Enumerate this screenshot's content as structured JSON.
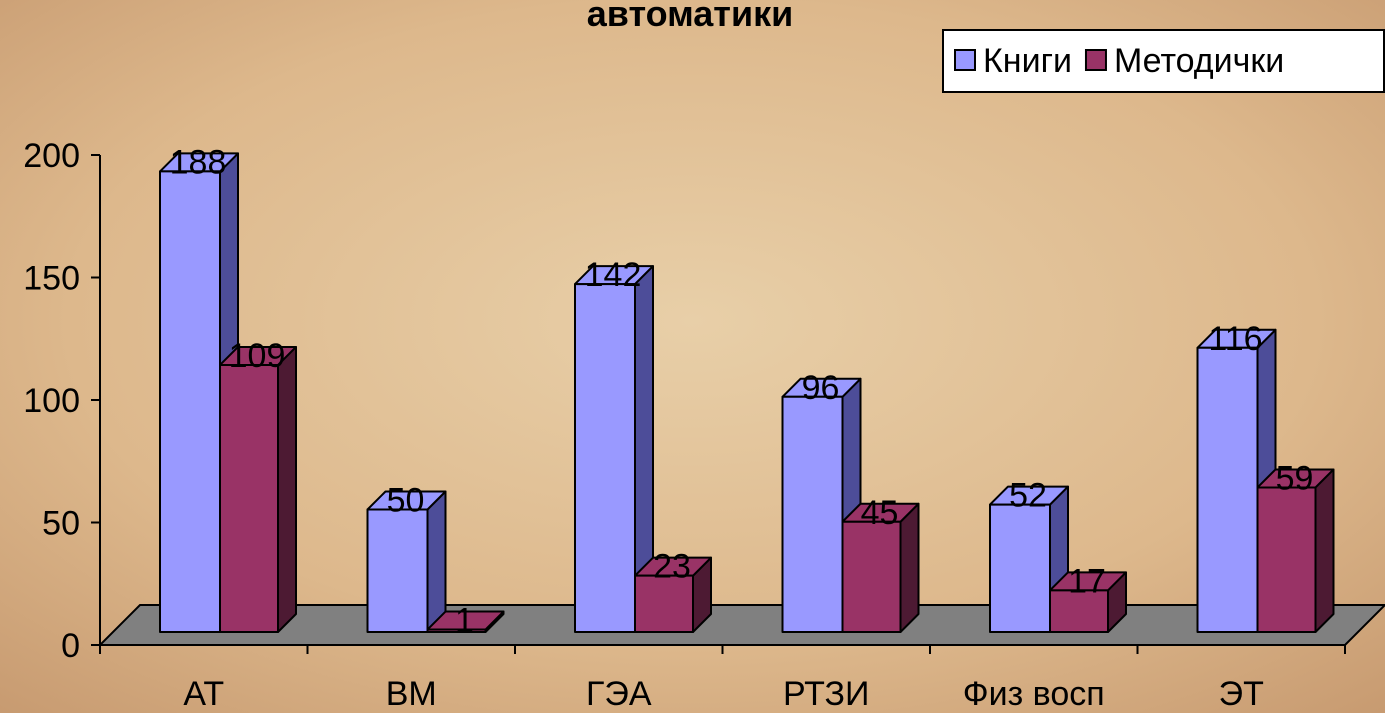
{
  "chart_data": {
    "type": "bar3d",
    "title": "автоматики",
    "categories": [
      "АТ",
      "ВМ",
      "ГЭА",
      "РТЗИ",
      "Физ восп",
      "ЭТ"
    ],
    "series": [
      {
        "name": "Книги",
        "color": "#9999ff",
        "side": "#4d4d99",
        "values": [
          188,
          50,
          142,
          96,
          52,
          116
        ]
      },
      {
        "name": "Методички",
        "color": "#993366",
        "side": "#4d1a33",
        "values": [
          109,
          1,
          23,
          45,
          17,
          59
        ]
      }
    ],
    "ylim": [
      0,
      200
    ],
    "yticks": [
      0,
      50,
      100,
      150,
      200
    ],
    "legend": "top-right"
  }
}
